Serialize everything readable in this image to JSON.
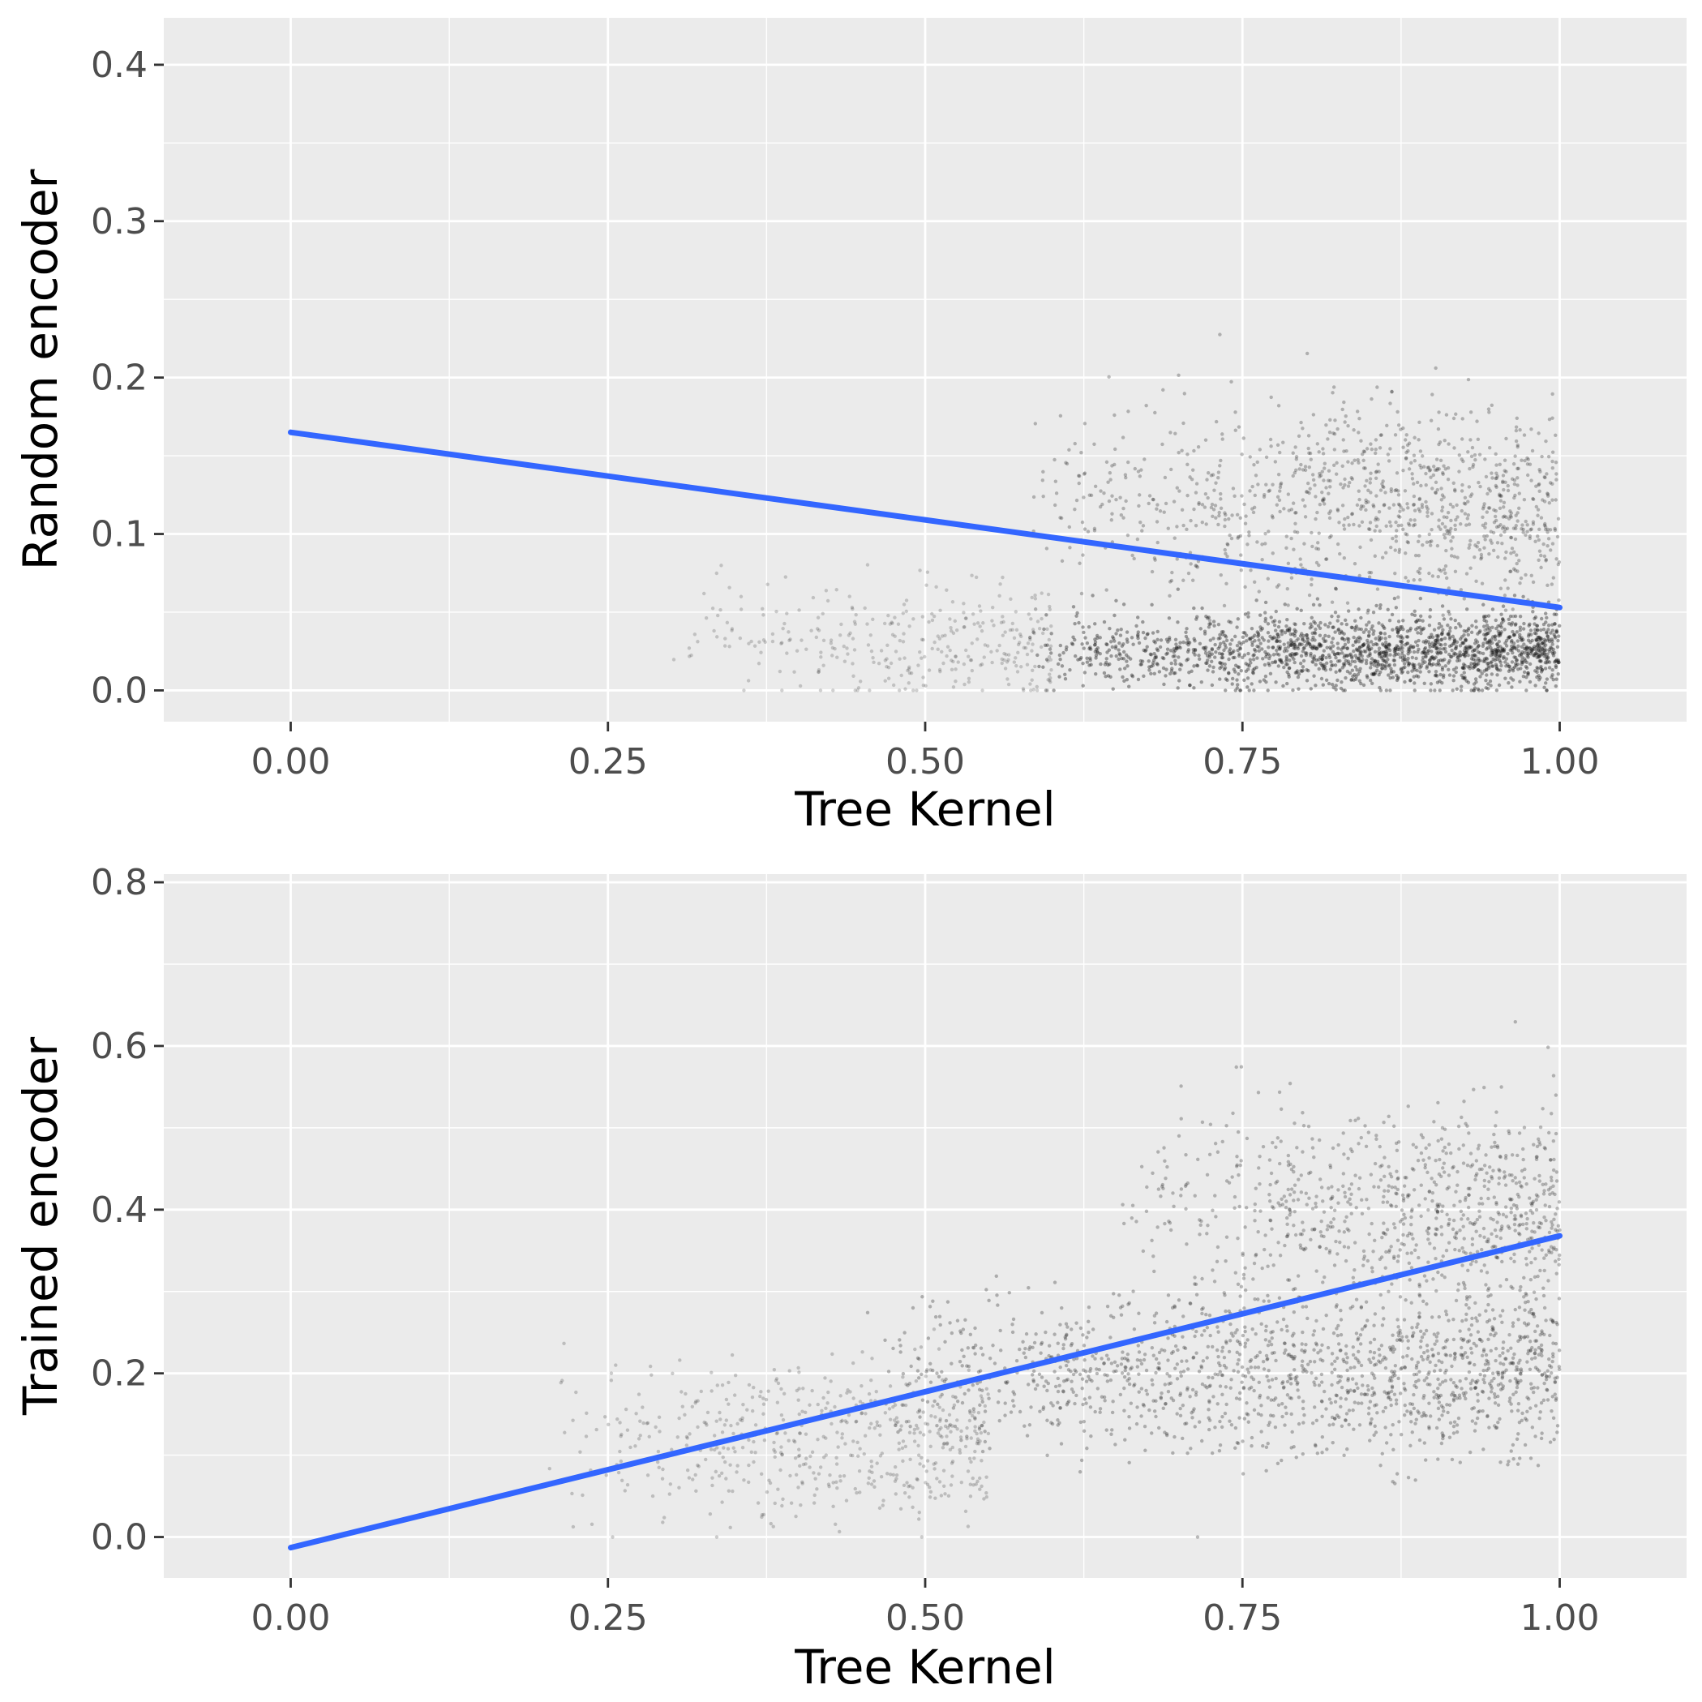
{
  "chart_data": [
    {
      "type": "scatter",
      "xlabel": "Tree Kernel",
      "ylabel": "Random encoder",
      "xlim": [
        -0.1,
        1.1
      ],
      "ylim": [
        -0.02,
        0.43
      ],
      "x_ticks": [
        0.0,
        0.25,
        0.5,
        0.75,
        1.0
      ],
      "x_tick_labels": [
        "0.00",
        "0.25",
        "0.50",
        "0.75",
        "1.00"
      ],
      "y_ticks": [
        0.0,
        0.1,
        0.2,
        0.3,
        0.4
      ],
      "y_tick_labels": [
        "0.0",
        "0.1",
        "0.2",
        "0.3",
        "0.4"
      ],
      "grid": true,
      "panel_background": "#ebebeb",
      "point_color": "#1a1a1a",
      "fit_line": {
        "color": "#3366ff",
        "x": [
          0.0,
          1.0
        ],
        "y": [
          0.165,
          0.053
        ]
      },
      "density_bands": [
        {
          "x_from": 0.58,
          "x_to": 1.0,
          "y_center": 0.025,
          "y_halfwidth": 0.02,
          "intensity": 0.95
        },
        {
          "x_from": 0.58,
          "x_to": 1.0,
          "y_center": 0.12,
          "y_halfwidth": 0.05,
          "intensity": 0.55
        },
        {
          "x_from": 0.3,
          "x_to": 0.6,
          "y_center": 0.03,
          "y_halfwidth": 0.03,
          "intensity": 0.25
        }
      ]
    },
    {
      "type": "scatter",
      "xlabel": "Tree Kernel",
      "ylabel": "Trained encoder",
      "xlim": [
        -0.1,
        1.1
      ],
      "ylim": [
        -0.05,
        0.81
      ],
      "x_ticks": [
        0.0,
        0.25,
        0.5,
        0.75,
        1.0
      ],
      "x_tick_labels": [
        "0.00",
        "0.25",
        "0.50",
        "0.75",
        "1.00"
      ],
      "y_ticks": [
        0.0,
        0.2,
        0.4,
        0.6,
        0.8
      ],
      "y_tick_labels": [
        "0.0",
        "0.2",
        "0.4",
        "0.6",
        "0.8"
      ],
      "grid": true,
      "panel_background": "#ebebeb",
      "point_color": "#1a1a1a",
      "fit_line": {
        "color": "#3366ff",
        "x": [
          0.0,
          1.0
        ],
        "y": [
          -0.013,
          0.368
        ]
      },
      "density_bands": [
        {
          "x_from": 0.45,
          "x_to": 1.0,
          "y_center": 0.2,
          "y_halfwidth": 0.08,
          "intensity": 0.6
        },
        {
          "x_from": 0.65,
          "x_to": 1.0,
          "y_center": 0.4,
          "y_halfwidth": 0.1,
          "intensity": 0.55
        },
        {
          "x_from": 0.2,
          "x_to": 0.55,
          "y_center": 0.12,
          "y_halfwidth": 0.08,
          "intensity": 0.35
        }
      ]
    }
  ]
}
